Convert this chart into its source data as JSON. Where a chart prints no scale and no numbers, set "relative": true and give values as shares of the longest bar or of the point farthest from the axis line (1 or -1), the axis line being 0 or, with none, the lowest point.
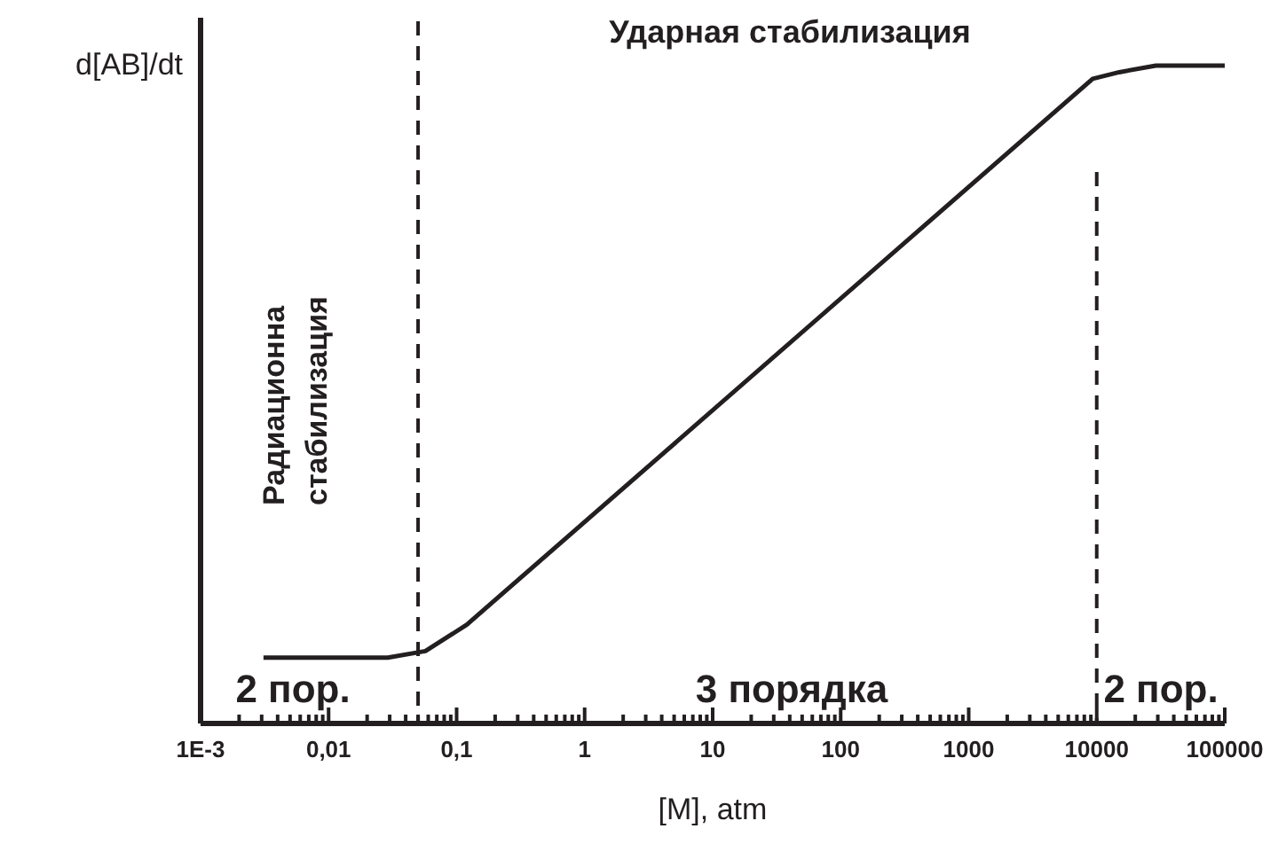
{
  "chart_data": {
    "type": "line",
    "title": "Ударная стабилизация",
    "xlabel": "[M], atm",
    "ylabel": "d[AB]/dt",
    "relative": true,
    "log": "x",
    "grid": false,
    "line_style": "solid",
    "annotations": [
      "Радиационна стабилизация",
      "2 пор.",
      "3 порядка",
      "2 пор."
    ],
    "x": [
      0.0031,
      0.029,
      0.057,
      0.12,
      9300,
      15000,
      29000,
      100000
    ],
    "series": [
      {
        "color": "#231f20",
        "values": [
          0.1,
          0.1,
          0.11,
          0.15,
          0.98,
          0.99,
          1,
          1
        ]
      }
    ],
    "xlim": [
      0.001,
      100000
    ],
    "xticks": [
      {
        "value": 0.001,
        "label": "1E-3"
      },
      {
        "value": 0.01,
        "label": "0,01"
      },
      {
        "value": 0.1,
        "label": "0,1"
      },
      1,
      10,
      100,
      1000,
      10000,
      100000,
      {
        "value": 0.002,
        "label": null
      },
      {
        "value": 0.003,
        "label": null
      },
      {
        "value": 0.004,
        "label": null
      },
      {
        "value": 0.005,
        "label": null
      },
      {
        "value": 0.006,
        "label": null
      },
      {
        "value": 0.007,
        "label": null
      },
      {
        "value": 0.008,
        "label": null
      },
      {
        "value": 0.009,
        "label": null
      },
      {
        "value": 0.02,
        "label": null
      },
      {
        "value": 0.03,
        "label": null
      },
      {
        "value": 0.04,
        "label": null
      },
      {
        "value": 0.05,
        "label": null
      },
      {
        "value": 0.06,
        "label": null
      },
      {
        "value": 0.07,
        "label": null
      },
      {
        "value": 0.08,
        "label": null
      },
      {
        "value": 0.09,
        "label": null
      },
      {
        "value": 0.2,
        "label": null
      },
      {
        "value": 0.3,
        "label": null
      },
      {
        "value": 0.4,
        "label": null
      },
      {
        "value": 0.5,
        "label": null
      },
      {
        "value": 0.6,
        "label": null
      },
      {
        "value": 0.7,
        "label": null
      },
      {
        "value": 0.8,
        "label": null
      },
      {
        "value": 0.9,
        "label": null
      },
      {
        "value": 2,
        "label": null
      },
      {
        "value": 3,
        "label": null
      },
      {
        "value": 4,
        "label": null
      },
      {
        "value": 5,
        "label": null
      },
      {
        "value": 6,
        "label": null
      },
      {
        "value": 7,
        "label": null
      },
      {
        "value": 8,
        "label": null
      },
      {
        "value": 9,
        "label": null
      },
      {
        "value": 20,
        "label": null
      },
      {
        "value": 30,
        "label": null
      },
      {
        "value": 40,
        "label": null
      },
      {
        "value": 50,
        "label": null
      },
      {
        "value": 60,
        "label": null
      },
      {
        "value": 70,
        "label": null
      },
      {
        "value": 80,
        "label": null
      },
      {
        "value": 90,
        "label": null
      },
      {
        "value": 200,
        "label": null
      },
      {
        "value": 300,
        "label": null
      },
      {
        "value": 400,
        "label": null
      },
      {
        "value": 500,
        "label": null
      },
      {
        "value": 600,
        "label": null
      },
      {
        "value": 700,
        "label": null
      },
      {
        "value": 800,
        "label": null
      },
      {
        "value": 900,
        "label": null
      },
      {
        "value": 2000,
        "label": null
      },
      {
        "value": 3000,
        "label": null
      },
      {
        "value": 4000,
        "label": null
      },
      {
        "value": 5000,
        "label": null
      },
      {
        "value": 6000,
        "label": null
      },
      {
        "value": 7000,
        "label": null
      },
      {
        "value": 8000,
        "label": null
      },
      {
        "value": 9000,
        "label": null
      },
      {
        "value": 20000,
        "label": null
      },
      {
        "value": 30000,
        "label": null
      },
      {
        "value": 40000,
        "label": null
      },
      {
        "value": 50000,
        "label": null
      },
      {
        "value": 60000,
        "label": null
      },
      {
        "value": 70000,
        "label": null
      },
      {
        "value": 80000,
        "label": null
      },
      {
        "value": 90000,
        "label": null
      }
    ],
    "ref_lines": [
      {
        "axis": "x",
        "value": 0.05,
        "line_style": "dashed",
        "color": "#231f20"
      },
      {
        "axis": "x",
        "value": 10000,
        "line_style": "dashed",
        "color": "#231f20"
      }
    ]
  }
}
